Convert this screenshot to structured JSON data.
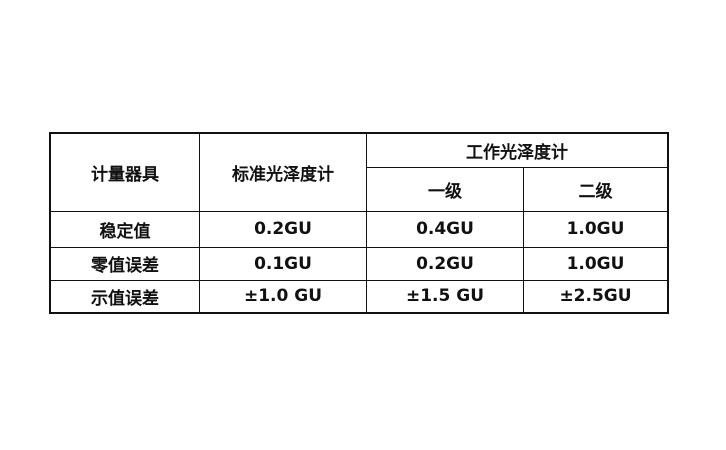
{
  "table": {
    "header": {
      "col0": "计量器具",
      "col1": "标准光泽度计",
      "group": "工作光泽度计",
      "sub": [
        "一级",
        "二级"
      ]
    },
    "rows": [
      {
        "label": "稳定值",
        "values": [
          "0.2GU",
          "0.4GU",
          "1.0GU"
        ]
      },
      {
        "label": "零值误差",
        "values": [
          "0.1GU",
          "0.2GU",
          "1.0GU"
        ]
      },
      {
        "label": "示值误差",
        "values": [
          "±1.0 GU",
          "±1.5 GU",
          "±2.5GU"
        ]
      }
    ]
  }
}
